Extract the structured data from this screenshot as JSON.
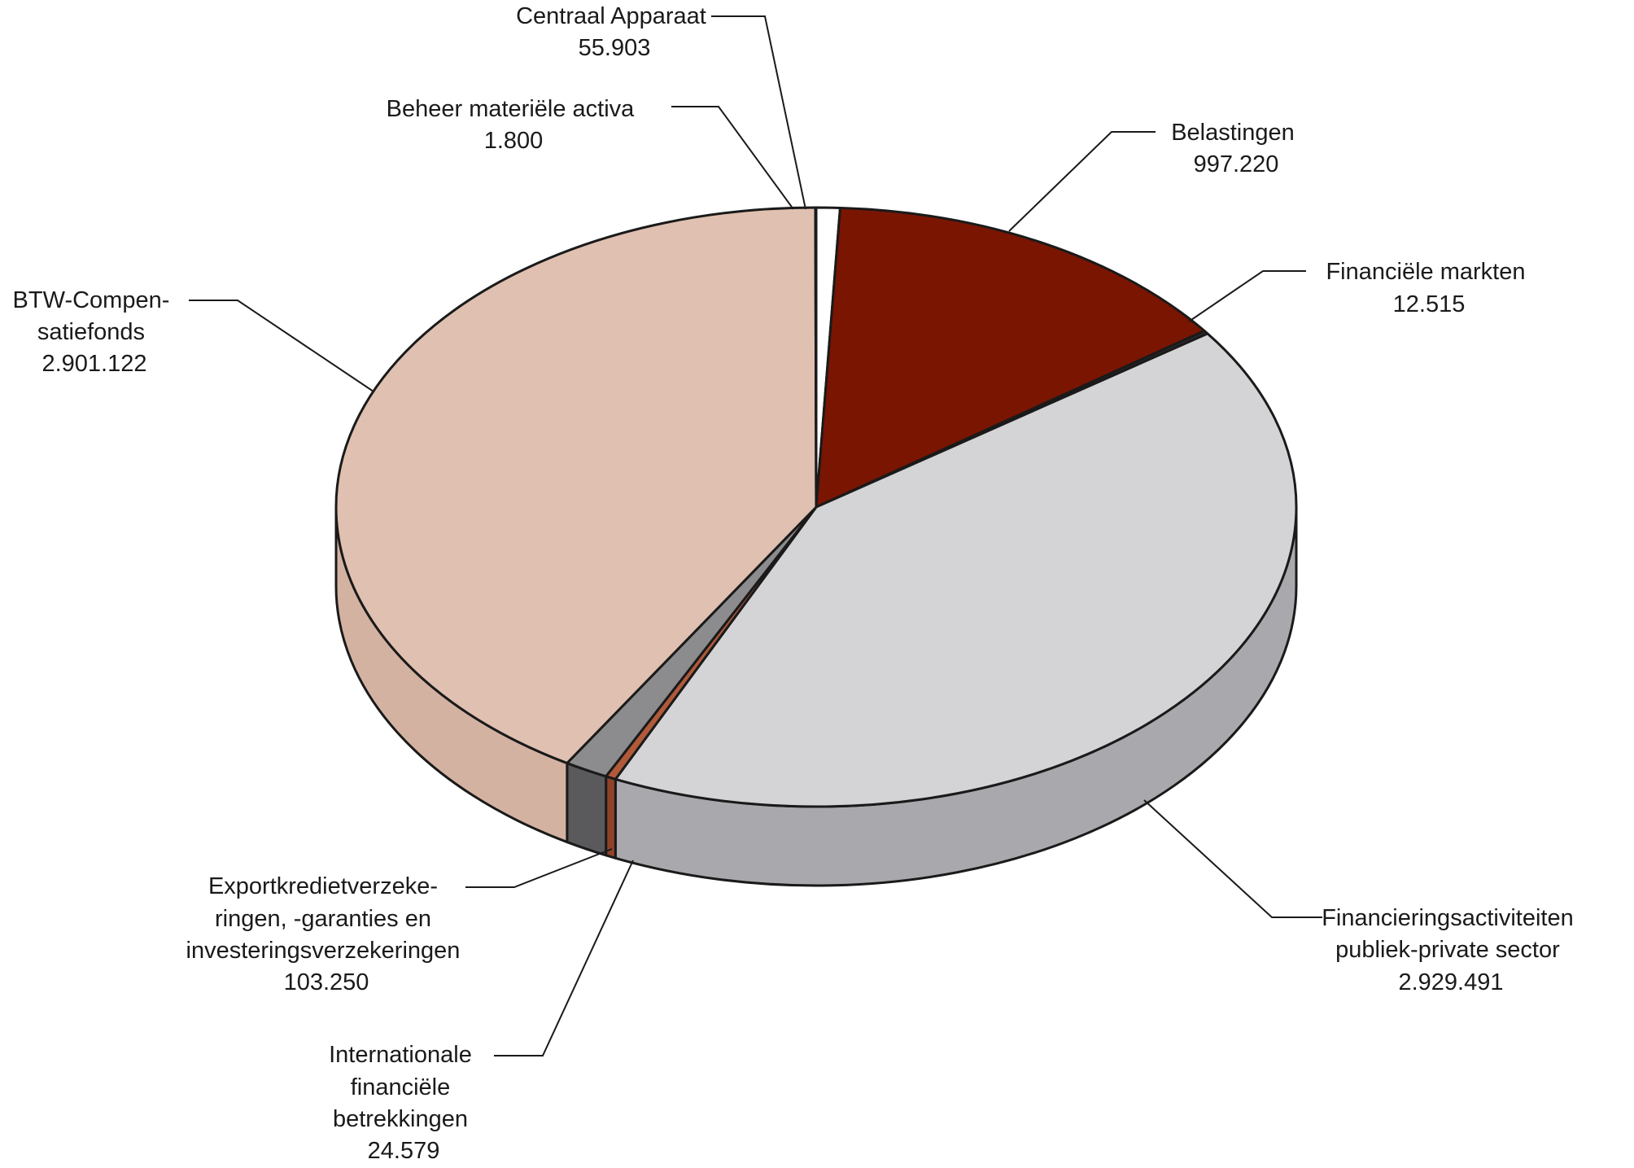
{
  "chart_data": {
    "type": "pie",
    "title": "",
    "unit": "",
    "slices": [
      {
        "label": "Centraal Apparaat",
        "value_text": "55.903",
        "value": 55903,
        "color": "#ffffff",
        "side_color": "#f2f2f2"
      },
      {
        "label": "Belastingen",
        "value_text": "997.220",
        "value": 997220,
        "color": "#7a1502",
        "side_color": "#5c1002"
      },
      {
        "label": "Financiële markten",
        "value_text": "12.515",
        "value": 12515,
        "color": "#2b2b2b",
        "side_color": "#1e1e1e"
      },
      {
        "label": "Financieringsactiviteiten publiek-private sector",
        "value_text": "2.929.491",
        "value": 2929491,
        "color": "#d4d4d6",
        "side_color": "#a9a9ad"
      },
      {
        "label": "Internationale financiële betrekkingen",
        "value_text": "24.579",
        "value": 24579,
        "color": "#b05a3a",
        "side_color": "#8e4329"
      },
      {
        "label": "Exportkredietverzekeringen, -garanties en investeringsverzekeringen",
        "value_text": "103.250",
        "value": 103250,
        "color": "#8c8c8e",
        "side_color": "#5a5a5c"
      },
      {
        "label": "BTW-Compensatiefonds",
        "value_text": "2.901.122",
        "value": 2901122,
        "color": "#e0c0b0",
        "side_color": "#d4b2a2"
      },
      {
        "label": "Beheer materiële activa",
        "value_text": "1.800",
        "value": 1800,
        "color": "#ffffff",
        "side_color": "#f2f2f2"
      }
    ]
  },
  "labels": {
    "centraal_apparaat": {
      "lines": [
        "Centraal Apparaat",
        "55.903"
      ]
    },
    "beheer": {
      "lines": [
        "Beheer materiële activa",
        "1.800"
      ]
    },
    "belastingen": {
      "lines": [
        "Belastingen",
        "997.220"
      ]
    },
    "financiele_markten": {
      "lines": [
        "Financiële markten",
        "12.515"
      ]
    },
    "btw": {
      "lines": [
        "BTW-Compen-",
        "satiefonds",
        "2.901.122"
      ]
    },
    "financiering": {
      "lines": [
        "Financieringsactiviteiten",
        "publiek-private sector",
        "2.929.491"
      ]
    },
    "export": {
      "lines": [
        "Exportkredietverzeke-",
        "ringen, -garanties en",
        "investeringsverzekeringen",
        "103.250"
      ]
    },
    "internationale": {
      "lines": [
        "Internationale",
        "financiële",
        "betrekkingen",
        "24.579"
      ]
    }
  }
}
